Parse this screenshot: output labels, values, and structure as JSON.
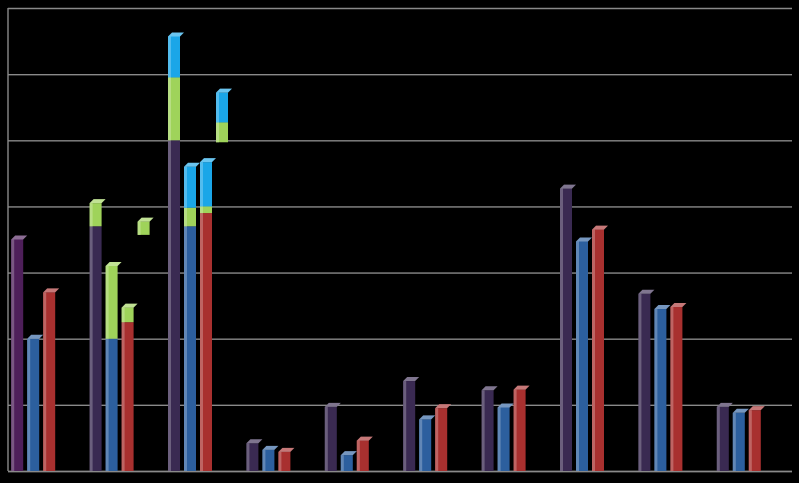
{
  "chart_data": {
    "type": "bar",
    "stacked": true,
    "grid": true,
    "ylim": [
      0,
      7
    ],
    "gridlines": [
      0,
      1,
      2,
      3,
      4,
      5,
      6,
      7
    ],
    "segment_colors": [
      "#3a2a52",
      "#9fd35a",
      "#1aa6e8"
    ],
    "bar_colors": [
      "#3a2a52",
      "#2c5f9e",
      "#a8302f"
    ],
    "first_bar_color": "#4e1f5a",
    "groups": [
      {
        "bars": [
          [
            3.5
          ],
          [
            2.0
          ],
          [
            2.7
          ]
        ]
      },
      {
        "bars": [
          [
            3.7,
            0.35
          ],
          [
            2.0,
            1.1
          ],
          [
            2.25,
            0.22
          ]
        ]
      },
      {
        "bars": [
          [
            5.0,
            0.95,
            0.62
          ],
          [
            3.7,
            0.28,
            0.62
          ],
          [
            3.9,
            0.1,
            0.67
          ]
        ]
      },
      {
        "bars": [
          [
            0.42
          ],
          [
            0.32
          ],
          [
            0.29
          ]
        ]
      },
      {
        "bars": [
          [
            0.97
          ],
          [
            0.24
          ],
          [
            0.46
          ]
        ]
      },
      {
        "bars": [
          [
            1.36
          ],
          [
            0.78
          ],
          [
            0.95
          ]
        ]
      },
      {
        "bars": [
          [
            1.22
          ],
          [
            0.96
          ],
          [
            1.23
          ]
        ]
      },
      {
        "bars": [
          [
            4.27
          ],
          [
            3.47
          ],
          [
            3.65
          ]
        ]
      },
      {
        "bars": [
          [
            2.68
          ],
          [
            2.45
          ],
          [
            2.48
          ]
        ]
      },
      {
        "bars": [
          [
            0.97
          ],
          [
            0.88
          ],
          [
            0.92
          ]
        ]
      }
    ],
    "floating": [
      {
        "group": 1,
        "bar": 2,
        "base": 3.57,
        "segments": [
          [
            0.2,
            1
          ]
        ]
      },
      {
        "group": 2,
        "bar": 2,
        "base": 4.97,
        "segments": [
          [
            0.3,
            1
          ],
          [
            0.45,
            2
          ]
        ]
      }
    ]
  }
}
